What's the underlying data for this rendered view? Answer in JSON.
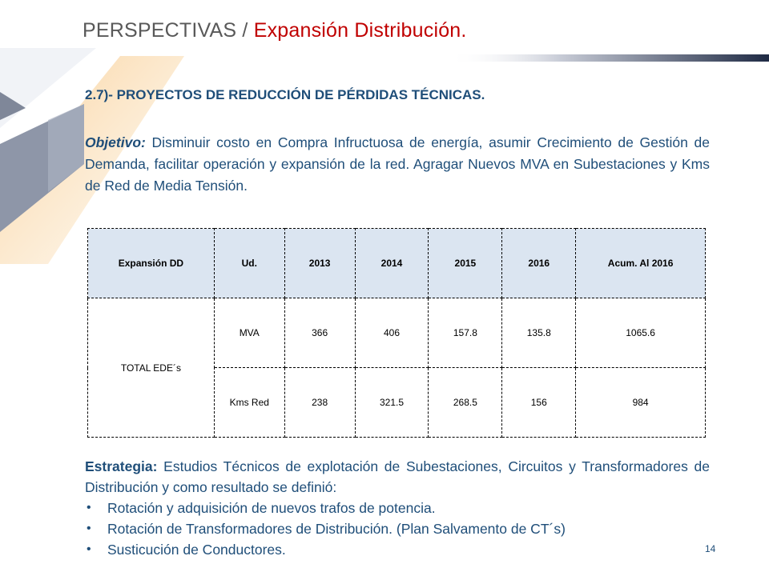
{
  "header": {
    "title_main": "PERSPECTIVAS / ",
    "title_accent": "Expansión Distribución."
  },
  "section": {
    "heading": "2.7)- PROYECTOS DE REDUCCIÓN DE PÉRDIDAS TÉCNICAS."
  },
  "objective": {
    "label": "Objetivo:",
    "text": " Disminuir costo en Compra Infructuosa de energía, asumir Crecimiento de Gestión de Demanda, facilitar operación y expansión de la red. Agragar Nuevos MVA en Subestaciones y Kms de Red de Media Tensión."
  },
  "table": {
    "headers": [
      "Expansión DD",
      "Ud.",
      "2013",
      "2014",
      "2015",
      "2016",
      "Acum. Al 2016"
    ],
    "group_label": "TOTAL EDE´s",
    "rows": [
      {
        "unit": "MVA",
        "values": [
          "366",
          "406",
          "157.8",
          "135.8",
          "1065.6"
        ]
      },
      {
        "unit": "Kms Red",
        "values": [
          "238",
          "321.5",
          "268.5",
          "156",
          "984"
        ]
      }
    ]
  },
  "strategy": {
    "label": "Estrategia:",
    "text": " Estudios Técnicos de explotación de Subestaciones, Circuitos y Transformadores de Distribución y como resultado se definió:",
    "bullets": [
      "Rotación y adquisición de nuevos trafos de potencia.",
      "Rotación de Transformadores de Distribución. (Plan Salvamento de CT´s)",
      "Susticución de Conductores."
    ]
  },
  "footer": {
    "page_number": "14"
  },
  "colors": {
    "accent_red": "#c00000",
    "text_blue": "#1f4e79",
    "header_fill": "#dbe5f1"
  }
}
